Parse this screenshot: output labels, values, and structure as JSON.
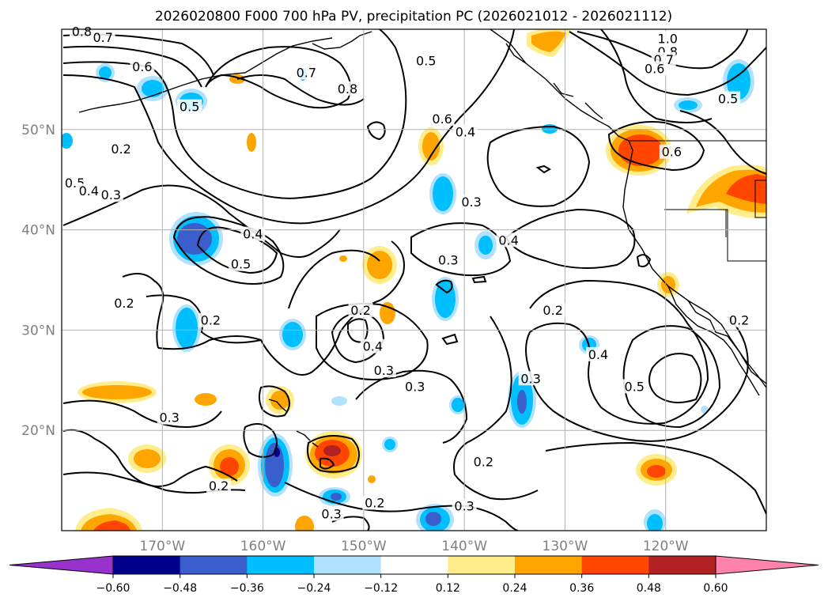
{
  "title": "2026020800 F000 700 hPa PV, precipitation PC (2026021012 - 2026021112)",
  "map": {
    "projection": "cylindrical",
    "lon_range": [
      -180,
      -110
    ],
    "lat_range": [
      10,
      60
    ],
    "lon_ticks": [
      {
        "value": -170,
        "label": "170°W"
      },
      {
        "value": -160,
        "label": "160°W"
      },
      {
        "value": -150,
        "label": "150°W"
      },
      {
        "value": -140,
        "label": "140°W"
      },
      {
        "value": -130,
        "label": "130°W"
      },
      {
        "value": -120,
        "label": "120°W"
      }
    ],
    "lat_ticks": [
      {
        "value": 50,
        "label": "50°N"
      },
      {
        "value": 40,
        "label": "40°N"
      },
      {
        "value": 30,
        "label": "30°N"
      },
      {
        "value": 20,
        "label": "20°N"
      }
    ],
    "grid": true
  },
  "colorbar": {
    "boundaries": [
      "-0.60",
      "-0.48",
      "-0.36",
      "-0.24",
      "-0.12",
      "0.12",
      "0.24",
      "0.36",
      "0.48",
      "0.60"
    ],
    "colors": [
      "#9932cc",
      "#00008b",
      "#3a5fcd",
      "#00bfff",
      "#b0e2ff",
      "#ffffff",
      "#ffec8b",
      "#ffa500",
      "#ff4500",
      "#b22222",
      "#ff82ab"
    ],
    "extend": "both"
  },
  "contour_labels": [
    {
      "text": "0.8",
      "lon": -178,
      "lat": 59.8
    },
    {
      "text": "0.7",
      "lon": -175.9,
      "lat": 59.2
    },
    {
      "text": "0.6",
      "lon": -172,
      "lat": 56.3
    },
    {
      "text": "0.7",
      "lon": -155.7,
      "lat": 55.7
    },
    {
      "text": "0.8",
      "lon": -151.6,
      "lat": 54.1
    },
    {
      "text": "0.5",
      "lon": -143.8,
      "lat": 56.9
    },
    {
      "text": "0.5",
      "lon": -167.3,
      "lat": 52.3
    },
    {
      "text": "0.6",
      "lon": -142.2,
      "lat": 51.1
    },
    {
      "text": "0.4",
      "lon": -139.9,
      "lat": 49.8
    },
    {
      "text": "1.0",
      "lon": -119.8,
      "lat": 59.1
    },
    {
      "text": "0.8",
      "lon": -119.8,
      "lat": 57.8
    },
    {
      "text": "0.7",
      "lon": -120.2,
      "lat": 57.0
    },
    {
      "text": "0.6",
      "lon": -121.1,
      "lat": 56.1
    },
    {
      "text": "0.5",
      "lon": -113.8,
      "lat": 53.1
    },
    {
      "text": "0.6",
      "lon": -119.4,
      "lat": 47.8
    },
    {
      "text": "0.2",
      "lon": -174.1,
      "lat": 48.1
    },
    {
      "text": "0.5",
      "lon": -178.7,
      "lat": 44.7
    },
    {
      "text": "0.4",
      "lon": -177.3,
      "lat": 43.9
    },
    {
      "text": "0.3",
      "lon": -175.1,
      "lat": 43.5
    },
    {
      "text": "0.3",
      "lon": -139.3,
      "lat": 42.8
    },
    {
      "text": "0.4",
      "lon": -161,
      "lat": 39.6
    },
    {
      "text": "0.5",
      "lon": -162.2,
      "lat": 36.6
    },
    {
      "text": "0.4",
      "lon": -135.6,
      "lat": 39.0
    },
    {
      "text": "0.3",
      "lon": -141.6,
      "lat": 37.0
    },
    {
      "text": "0.2",
      "lon": -173.8,
      "lat": 32.7
    },
    {
      "text": "0.2",
      "lon": -165.2,
      "lat": 31.0
    },
    {
      "text": "0.2",
      "lon": -150.3,
      "lat": 32.0
    },
    {
      "text": "0.2",
      "lon": -131.2,
      "lat": 32.0
    },
    {
      "text": "0.2",
      "lon": -112.7,
      "lat": 31.0
    },
    {
      "text": "0.4",
      "lon": -149.1,
      "lat": 28.4
    },
    {
      "text": "0.3",
      "lon": -148,
      "lat": 26.0
    },
    {
      "text": "0.3",
      "lon": -133.4,
      "lat": 25.2
    },
    {
      "text": "0.4",
      "lon": -126.7,
      "lat": 27.6
    },
    {
      "text": "0.3",
      "lon": -144.9,
      "lat": 24.4
    },
    {
      "text": "0.5",
      "lon": -123.1,
      "lat": 24.4
    },
    {
      "text": "0.3",
      "lon": -169.3,
      "lat": 21.3
    },
    {
      "text": "0.2",
      "lon": -138.1,
      "lat": 16.9
    },
    {
      "text": "0.2",
      "lon": -164.4,
      "lat": 14.5
    },
    {
      "text": "0.2",
      "lon": -148.9,
      "lat": 12.8
    },
    {
      "text": "0.3",
      "lon": -140.0,
      "lat": 12.5
    },
    {
      "text": "0.3",
      "lon": -153.2,
      "lat": 11.7
    }
  ]
}
